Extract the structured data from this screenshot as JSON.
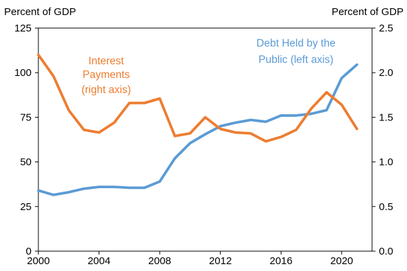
{
  "chart_data": {
    "type": "line",
    "left_axis_unit": "Percent of GDP",
    "right_axis_unit": "Percent of GDP",
    "xlim": [
      2000,
      2022
    ],
    "x_ticks": [
      2000,
      2004,
      2008,
      2012,
      2016,
      2020
    ],
    "ylim_left": [
      0,
      125
    ],
    "yticks_left": [
      "0",
      "25",
      "50",
      "75",
      "100",
      "125"
    ],
    "ylim_right": [
      0.0,
      2.5
    ],
    "yticks_right": [
      "0.0",
      "0.5",
      "1.0",
      "1.5",
      "2.0",
      "2.5"
    ],
    "grid": false,
    "series": [
      {
        "axis": "left",
        "color": "#5b9bd5",
        "label_lines": [
          "Debt Held by the",
          "Public (left axis)"
        ],
        "x": [
          2000,
          2001,
          2002,
          2003,
          2004,
          2005,
          2006,
          2007,
          2008,
          2009,
          2010,
          2011,
          2012,
          2013,
          2014,
          2015,
          2016,
          2017,
          2018,
          2019,
          2020,
          2021
        ],
        "values": [
          34,
          31.5,
          33,
          35,
          36,
          36,
          35.5,
          35.5,
          39,
          52,
          60.5,
          65.5,
          70,
          72,
          73.5,
          72.5,
          76,
          76,
          77,
          79,
          97,
          104.5
        ]
      },
      {
        "axis": "right",
        "color": "#ed7d31",
        "label_lines": [
          "Interest",
          "Payments",
          "(right axis)"
        ],
        "x": [
          2000,
          2001,
          2002,
          2003,
          2004,
          2005,
          2006,
          2007,
          2008,
          2009,
          2010,
          2011,
          2012,
          2013,
          2014,
          2015,
          2016,
          2017,
          2018,
          2019,
          2020,
          2021
        ],
        "values": [
          2.2,
          1.96,
          1.58,
          1.36,
          1.33,
          1.44,
          1.66,
          1.66,
          1.71,
          1.29,
          1.32,
          1.5,
          1.37,
          1.33,
          1.32,
          1.23,
          1.28,
          1.36,
          1.6,
          1.78,
          1.64,
          1.37
        ]
      }
    ]
  }
}
